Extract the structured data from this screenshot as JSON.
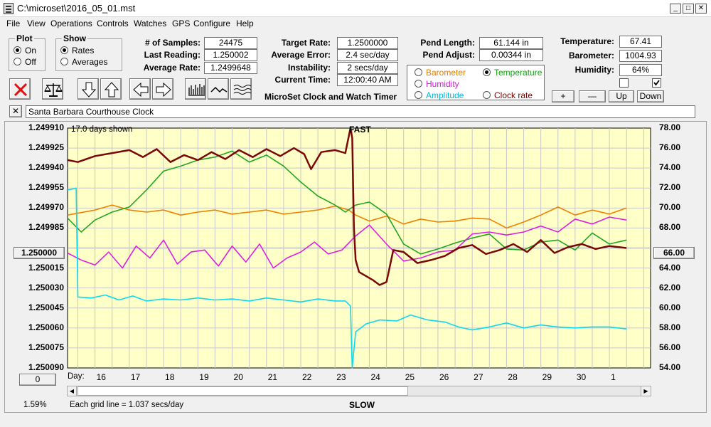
{
  "window": {
    "title": "C:\\microset\\2016_05_01.mst"
  },
  "menu": [
    "File",
    "View",
    "Operations",
    "Controls",
    "Watches",
    "GPS",
    "Configure",
    "Help"
  ],
  "plot_group": {
    "title": "Plot",
    "options": [
      "On",
      "Off"
    ],
    "selected": "On"
  },
  "show_group": {
    "title": "Show",
    "options": [
      "Rates",
      "Averages"
    ],
    "selected": "Rates"
  },
  "stats": {
    "samples_label": "# of Samples:",
    "samples": "24475",
    "last_label": "Last Reading:",
    "last": "1.250002",
    "avg_label": "Average Rate:",
    "avg": "1.2499648"
  },
  "rates": {
    "target_label": "Target Rate:",
    "target": "1.2500000",
    "error_label": "Average Error:",
    "error": "2.4 sec/day",
    "instab_label": "Instability:",
    "instab": "2 secs/day",
    "time_label": "Current Time:",
    "time": "12:00:40 AM"
  },
  "app_caption": "MicroSet Clock and Watch Timer",
  "pendulum": {
    "length_label": "Pend Length:",
    "length": "61.144 in",
    "adjust_label": "Pend Adjust:",
    "adjust": "0.00344 in"
  },
  "sensor_options": [
    {
      "label": "Barometer",
      "color": "#e67e00",
      "selected": false
    },
    {
      "label": "Temperature",
      "color": "#18a018",
      "selected": true
    },
    {
      "label": "Humidity",
      "color": "#d020d0",
      "selected": false
    },
    {
      "label": "Amplitude",
      "color": "#00b8d8",
      "selected": false
    },
    {
      "label": "Clock rate",
      "color": "#7a0000",
      "selected": false
    }
  ],
  "environment": {
    "temp_label": "Temperature:",
    "temp": "67.41",
    "baro_label": "Barometer:",
    "baro": "1004.93",
    "hum_label": "Humidity:",
    "hum": "64%",
    "chk1": false,
    "chk2": true
  },
  "scale_buttons": {
    "plus": "+",
    "minus": "—",
    "up": "Up",
    "down": "Down"
  },
  "clock_name": "Santa Barbara Courthouse Clock",
  "close_glyph": "✕",
  "chart_data": {
    "type": "line",
    "top_label": "FAST",
    "bottom_label": "SLOW",
    "days_shown": "17.0 days shown",
    "day_prefix": "Day:",
    "days": [
      "16",
      "17",
      "18",
      "19",
      "20",
      "21",
      "22",
      "23",
      "24",
      "25",
      "26",
      "27",
      "28",
      "29",
      "30",
      "1"
    ],
    "left_ticks": [
      "1.249910",
      "1.249925",
      "1.249940",
      "1.249955",
      "1.249970",
      "1.249985",
      "1.250000",
      "1.250015",
      "1.250030",
      "1.250045",
      "1.250060",
      "1.250075",
      "1.250090"
    ],
    "right_ticks": [
      "78.00",
      "76.00",
      "74.00",
      "72.00",
      "70.00",
      "68.00",
      "66.00",
      "64.00",
      "62.00",
      "60.00",
      "58.00",
      "56.00",
      "54.00"
    ],
    "center_left": "1.250000",
    "center_right": "66.00",
    "bottom_left_value": "0",
    "percent": "1.59%",
    "grid_note": "Each grid line = 1.037 secs/day",
    "ylim_right": [
      54,
      78
    ],
    "series": [
      {
        "name": "Barometer",
        "color": "#f08000",
        "x": [
          15.2,
          16,
          16.5,
          17,
          17.5,
          18,
          18.5,
          19,
          19.5,
          20,
          20.5,
          21,
          21.5,
          22,
          22.5,
          23,
          23.4,
          23.6,
          24,
          24.5,
          25,
          25.5,
          26,
          26.5,
          27,
          27.5,
          28,
          28.5,
          29,
          29.5,
          30,
          30.5,
          31,
          31.5
        ],
        "y": [
          69.3,
          69.8,
          70.3,
          69.8,
          69.6,
          69.8,
          69.3,
          69.6,
          69.8,
          69.4,
          69.6,
          69.8,
          69.4,
          69.6,
          69.8,
          70.2,
          69.8,
          69.3,
          68.7,
          69.2,
          68.4,
          68.9,
          68.6,
          68.7,
          69.0,
          68.9,
          68.0,
          68.6,
          69.3,
          70.1,
          69.3,
          69.8,
          69.4,
          70.0
        ]
      },
      {
        "name": "Temperature",
        "color": "#20a820",
        "x": [
          15.2,
          15.6,
          16,
          16.5,
          17,
          17.5,
          18,
          18.5,
          19,
          19.5,
          20,
          20.5,
          21,
          21.5,
          22,
          22.5,
          23,
          23.3,
          23.6,
          24,
          24.5,
          25,
          25.5,
          26,
          26.5,
          27,
          27.5,
          28,
          28.5,
          29,
          29.5,
          30,
          30.5,
          31,
          31.5
        ],
        "y": [
          69.0,
          67.6,
          68.8,
          69.6,
          70.1,
          71.8,
          73.7,
          74.2,
          74.8,
          75.1,
          75.7,
          74.6,
          75.3,
          74.2,
          72.6,
          71.2,
          70.3,
          69.6,
          70.3,
          70.6,
          69.4,
          66.4,
          65.4,
          65.9,
          66.5,
          67.0,
          67.4,
          65.9,
          65.8,
          66.6,
          66.8,
          65.8,
          67.5,
          66.4,
          66.8
        ]
      },
      {
        "name": "Humidity",
        "color": "#e020e0",
        "x": [
          15.2,
          15.6,
          16,
          16.4,
          16.8,
          17.2,
          17.6,
          18,
          18.4,
          18.8,
          19.2,
          19.6,
          20,
          20.4,
          20.8,
          21.2,
          21.6,
          22,
          22.4,
          22.8,
          23.2,
          23.6,
          24,
          24.5,
          25,
          25.5,
          26,
          26.5,
          27,
          27.5,
          28,
          28.5,
          29,
          29.5,
          30,
          30.5,
          31,
          31.5
        ],
        "y": [
          65.5,
          64.8,
          64.3,
          65.6,
          64.0,
          66.2,
          65.0,
          66.8,
          64.4,
          65.6,
          65.8,
          64.2,
          66.2,
          64.6,
          66.4,
          64.0,
          65.0,
          65.6,
          66.6,
          65.4,
          65.8,
          67.2,
          68.3,
          66.4,
          64.7,
          65.0,
          65.6,
          65.8,
          67.4,
          67.6,
          67.3,
          67.6,
          68.2,
          67.6,
          68.9,
          68.4,
          69.1,
          68.8
        ]
      },
      {
        "name": "Amplitude",
        "color": "#10d8f0",
        "x": [
          15.2,
          15.45,
          15.5,
          15.9,
          16.3,
          16.7,
          17.1,
          17.5,
          18,
          18.5,
          19,
          19.5,
          20,
          20.5,
          21,
          21.5,
          22,
          22.5,
          23,
          23.3,
          23.45,
          23.5,
          23.6,
          23.9,
          24.3,
          24.8,
          25.2,
          25.7,
          26.2,
          26.6,
          27,
          27.5,
          28,
          28.5,
          29,
          29.5,
          30,
          30.5,
          31,
          31.5
        ],
        "y": [
          71.8,
          72.0,
          61.1,
          61.0,
          61.3,
          60.8,
          61.2,
          60.7,
          60.9,
          60.8,
          61.0,
          60.8,
          60.9,
          60.7,
          61.0,
          60.8,
          60.6,
          60.9,
          60.7,
          60.7,
          60.2,
          54.0,
          57.6,
          58.4,
          58.8,
          58.7,
          59.3,
          58.8,
          58.6,
          58.1,
          57.8,
          58.1,
          58.5,
          58.0,
          58.3,
          58.1,
          58.0,
          58.1,
          58.1,
          57.9
        ]
      },
      {
        "name": "Clock rate",
        "color": "#7a0808",
        "x": [
          15.2,
          15.5,
          16,
          16.5,
          17,
          17.4,
          17.8,
          18.2,
          18.6,
          19,
          19.4,
          19.8,
          20.2,
          20.6,
          21,
          21.4,
          21.8,
          22.1,
          22.3,
          22.6,
          23,
          23.3,
          23.45,
          23.5,
          23.55,
          23.6,
          23.7,
          23.9,
          24.1,
          24.3,
          24.5,
          24.7,
          25,
          25.4,
          25.8,
          26.2,
          26.6,
          27,
          27.4,
          27.8,
          28.2,
          28.6,
          29,
          29.4,
          29.8,
          30.2,
          30.6,
          31,
          31.5
        ],
        "y": [
          74.8,
          74.6,
          75.2,
          75.5,
          75.8,
          75.1,
          75.9,
          74.6,
          75.3,
          74.8,
          75.6,
          74.9,
          75.8,
          75.1,
          75.9,
          75.2,
          76.0,
          75.4,
          73.9,
          75.6,
          75.8,
          75.5,
          78.0,
          77.0,
          68.0,
          64.8,
          63.6,
          63.2,
          62.8,
          62.3,
          62.6,
          65.8,
          65.6,
          64.5,
          64.8,
          65.2,
          66.0,
          66.3,
          65.4,
          65.8,
          66.4,
          65.6,
          66.8,
          65.5,
          66.1,
          66.4,
          65.9,
          66.2,
          66.0
        ]
      }
    ]
  }
}
